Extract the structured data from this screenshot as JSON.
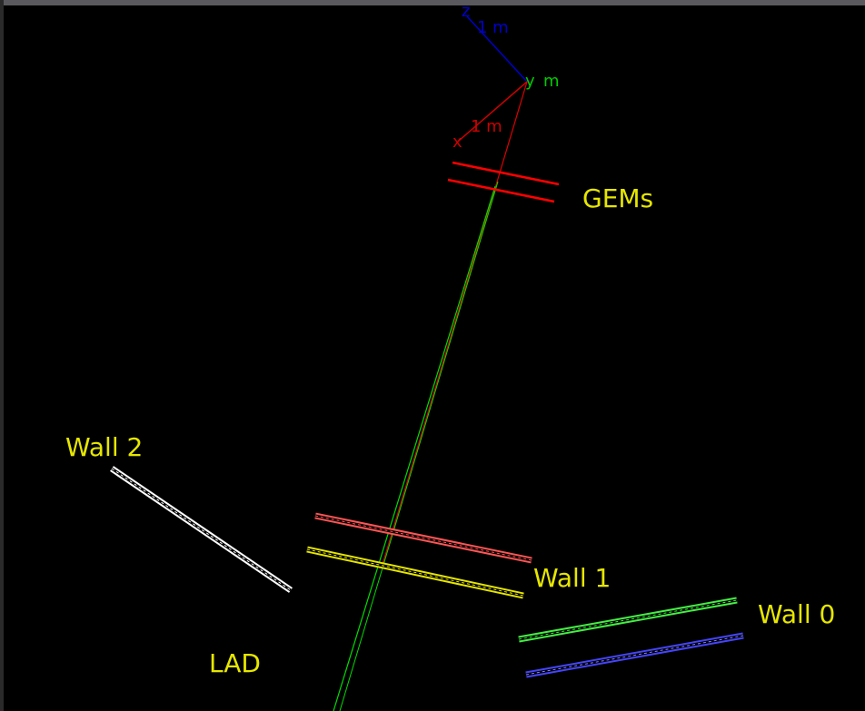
{
  "axes": {
    "z": "z",
    "z_scale": "1 m",
    "y": "y",
    "y_scale": "m",
    "x": "x",
    "x_scale": "1 m"
  },
  "labels": {
    "gems": "GEMs",
    "wall2": "Wall 2",
    "wall1": "Wall 1",
    "wall0": "Wall 0",
    "lad": "LAD"
  }
}
